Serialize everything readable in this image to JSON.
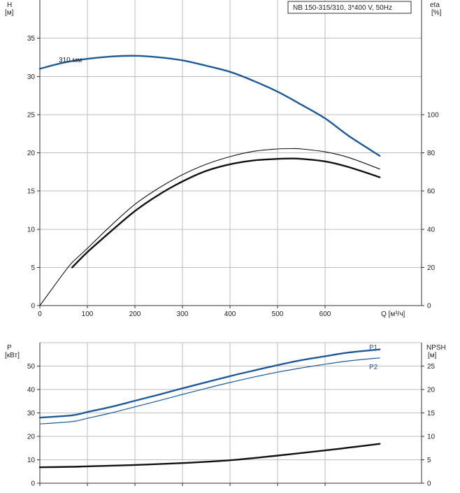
{
  "header": {
    "title": "NB 150-315/310, 3*400 V, 50Hz"
  },
  "chart_data": [
    {
      "type": "line",
      "name": "head-efficiency",
      "x_axis": {
        "label": "Q [м³/ч]",
        "range": [
          0,
          730
        ],
        "ticks": [
          0,
          100,
          200,
          300,
          400,
          500,
          600
        ]
      },
      "y_left": {
        "label_top": "H",
        "label_unit": "[м]",
        "range": [
          0,
          40
        ],
        "ticks": [
          0,
          5,
          10,
          15,
          20,
          25,
          30,
          35
        ]
      },
      "y_right": {
        "label_top": "eta",
        "label_unit": "[%]",
        "range": [
          0,
          160
        ],
        "ticks": [
          0,
          20,
          40,
          60,
          80,
          100
        ]
      },
      "grid": true,
      "series": [
        {
          "name": "310 мм",
          "axis": "left",
          "color": "#1f5a96",
          "width": 2.4,
          "points": [
            [
              0,
              31.0
            ],
            [
              50,
              31.8
            ],
            [
              100,
              32.3
            ],
            [
              150,
              32.6
            ],
            [
              200,
              32.7
            ],
            [
              250,
              32.5
            ],
            [
              300,
              32.1
            ],
            [
              350,
              31.4
            ],
            [
              400,
              30.6
            ],
            [
              450,
              29.4
            ],
            [
              500,
              28.0
            ],
            [
              550,
              26.3
            ],
            [
              600,
              24.5
            ],
            [
              650,
              22.2
            ],
            [
              715,
              19.6
            ]
          ]
        },
        {
          "name": "eta-thin",
          "axis": "right",
          "color": "#111111",
          "width": 1.1,
          "points": [
            [
              0,
              0
            ],
            [
              50,
              17
            ],
            [
              68,
              22.5
            ],
            [
              100,
              30
            ],
            [
              150,
              42
            ],
            [
              200,
              53
            ],
            [
              250,
              61.5
            ],
            [
              300,
              68.5
            ],
            [
              350,
              74
            ],
            [
              400,
              78
            ],
            [
              450,
              80.8
            ],
            [
              500,
              82
            ],
            [
              530,
              82.2
            ],
            [
              550,
              82
            ],
            [
              600,
              80.5
            ],
            [
              650,
              77.5
            ],
            [
              715,
              71.5
            ]
          ]
        },
        {
          "name": "eta-thick",
          "axis": "right",
          "color": "#111111",
          "width": 2.4,
          "points": [
            [
              68,
              20
            ],
            [
              100,
              28
            ],
            [
              150,
              39
            ],
            [
              200,
              49.5
            ],
            [
              250,
              58
            ],
            [
              300,
              65
            ],
            [
              350,
              70.5
            ],
            [
              400,
              74
            ],
            [
              450,
              76
            ],
            [
              500,
              76.8
            ],
            [
              530,
              77
            ],
            [
              550,
              76.8
            ],
            [
              600,
              75.5
            ],
            [
              650,
              72.5
            ],
            [
              715,
              67.2
            ]
          ]
        }
      ]
    },
    {
      "type": "line",
      "name": "power-npsh",
      "x_axis": {
        "range": [
          0,
          730
        ],
        "ticks": [
          0,
          100,
          200,
          300,
          400,
          500,
          600
        ]
      },
      "y_left": {
        "label_top": "P",
        "label_unit": "[кВт]",
        "range": [
          0,
          60
        ],
        "ticks": [
          0,
          10,
          20,
          30,
          40,
          50
        ]
      },
      "y_right": {
        "label_top": "NPSH",
        "label_unit": "[м]",
        "range": [
          0,
          30
        ],
        "ticks": [
          0,
          5,
          10,
          15,
          20,
          25
        ]
      },
      "grid": true,
      "series": [
        {
          "name": "P1",
          "axis": "left",
          "color": "#1f5a96",
          "width": 2.4,
          "points": [
            [
              0,
              28
            ],
            [
              68,
              29
            ],
            [
              100,
              30.4
            ],
            [
              150,
              32.6
            ],
            [
              200,
              35.2
            ],
            [
              250,
              37.8
            ],
            [
              300,
              40.5
            ],
            [
              350,
              43.1
            ],
            [
              400,
              45.7
            ],
            [
              450,
              48.1
            ],
            [
              500,
              50.4
            ],
            [
              550,
              52.5
            ],
            [
              600,
              54.2
            ],
            [
              650,
              55.8
            ],
            [
              715,
              57.1
            ]
          ]
        },
        {
          "name": "P2",
          "axis": "left",
          "color": "#1f5a96",
          "width": 1.2,
          "points": [
            [
              0,
              25.3
            ],
            [
              68,
              26.3
            ],
            [
              100,
              27.7
            ],
            [
              150,
              30
            ],
            [
              200,
              32.6
            ],
            [
              250,
              35.2
            ],
            [
              300,
              37.9
            ],
            [
              350,
              40.5
            ],
            [
              400,
              43
            ],
            [
              450,
              45.3
            ],
            [
              500,
              47.4
            ],
            [
              550,
              49.2
            ],
            [
              600,
              50.8
            ],
            [
              650,
              52.2
            ],
            [
              715,
              53.5
            ]
          ]
        },
        {
          "name": "NPSH",
          "axis": "right",
          "color": "#111111",
          "width": 2.4,
          "points": [
            [
              0,
              3.4
            ],
            [
              68,
              3.5
            ],
            [
              100,
              3.6
            ],
            [
              200,
              3.9
            ],
            [
              300,
              4.3
            ],
            [
              400,
              4.9
            ],
            [
              500,
              5.9
            ],
            [
              600,
              7.0
            ],
            [
              650,
              7.6
            ],
            [
              715,
              8.4
            ]
          ]
        }
      ]
    }
  ]
}
